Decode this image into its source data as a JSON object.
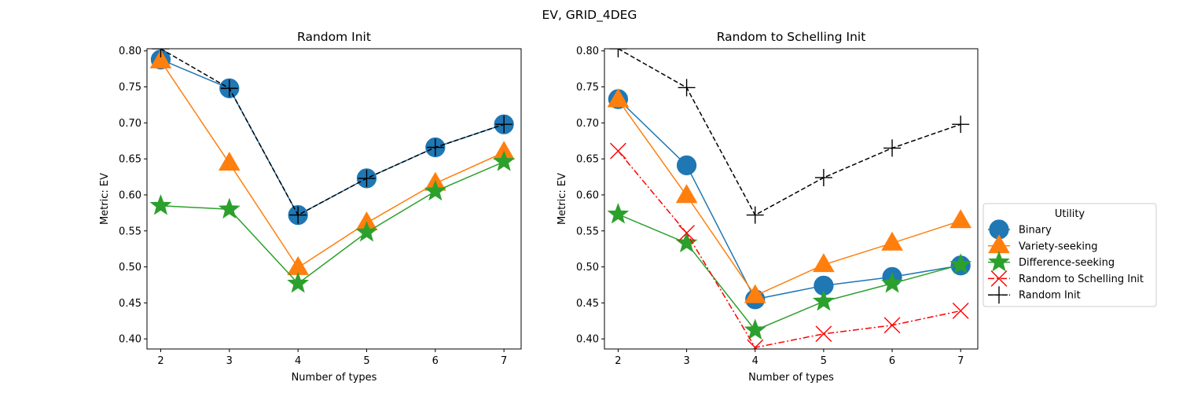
{
  "figure": {
    "suptitle": "EV, GRID_4DEG"
  },
  "chart_data": [
    {
      "type": "line",
      "title": "Random Init",
      "xlabel": "Number of types",
      "ylabel": "Metric: EV",
      "x": [
        2,
        3,
        4,
        5,
        6,
        7
      ],
      "xlim": [
        1.8,
        7.25
      ],
      "ylim": [
        0.386,
        0.803
      ],
      "xticks": [
        "2",
        "3",
        "4",
        "5",
        "6",
        "7"
      ],
      "yticks": [
        "0.40",
        "0.45",
        "0.50",
        "0.55",
        "0.60",
        "0.65",
        "0.70",
        "0.75",
        "0.80"
      ],
      "grid": false,
      "series": [
        {
          "name": "Binary",
          "values": [
            0.788,
            0.748,
            0.572,
            0.623,
            0.666,
            0.698
          ],
          "color": "#1f77b4",
          "marker": "circle",
          "dash": "solid"
        },
        {
          "name": "Variety-seeking",
          "values": [
            0.786,
            0.644,
            0.499,
            0.561,
            0.616,
            0.659
          ],
          "color": "#ff7f0e",
          "marker": "triangle",
          "dash": "solid"
        },
        {
          "name": "Difference-seeking",
          "values": [
            0.585,
            0.58,
            0.477,
            0.548,
            0.605,
            0.646
          ],
          "color": "#2ca02c",
          "marker": "star",
          "dash": "solid"
        },
        {
          "name": "Random Init",
          "values": [
            0.803,
            0.748,
            0.572,
            0.623,
            0.666,
            0.698
          ],
          "color": "#000000",
          "marker": "plus",
          "dash": "dashed"
        }
      ]
    },
    {
      "type": "line",
      "title": "Random to Schelling Init",
      "xlabel": "Number of types",
      "ylabel": "Metric: EV",
      "x": [
        2,
        3,
        4,
        5,
        6,
        7
      ],
      "xlim": [
        1.8,
        7.25
      ],
      "ylim": [
        0.386,
        0.803
      ],
      "xticks": [
        "2",
        "3",
        "4",
        "5",
        "6",
        "7"
      ],
      "yticks": [
        "0.40",
        "0.45",
        "0.50",
        "0.55",
        "0.60",
        "0.65",
        "0.70",
        "0.75",
        "0.80"
      ],
      "grid": false,
      "series": [
        {
          "name": "Binary",
          "values": [
            0.733,
            0.641,
            0.455,
            0.474,
            0.486,
            0.502
          ],
          "color": "#1f77b4",
          "marker": "circle",
          "dash": "solid"
        },
        {
          "name": "Variety-seeking",
          "values": [
            0.732,
            0.599,
            0.46,
            0.503,
            0.533,
            0.564
          ],
          "color": "#ff7f0e",
          "marker": "triangle",
          "dash": "solid"
        },
        {
          "name": "Difference-seeking",
          "values": [
            0.573,
            0.533,
            0.412,
            0.452,
            0.477,
            0.503
          ],
          "color": "#2ca02c",
          "marker": "star",
          "dash": "solid"
        },
        {
          "name": "Random to Schelling Init",
          "values": [
            0.661,
            0.547,
            0.388,
            0.407,
            0.419,
            0.439
          ],
          "color": "#ff0000",
          "marker": "x",
          "dash": "dashdot"
        },
        {
          "name": "Random Init",
          "values": [
            0.803,
            0.749,
            0.572,
            0.624,
            0.665,
            0.698
          ],
          "color": "#000000",
          "marker": "plus",
          "dash": "dashed"
        }
      ]
    }
  ],
  "legend": {
    "title": "Utility",
    "placement": "right",
    "entries": [
      {
        "label": "Binary",
        "color": "#1f77b4",
        "marker": "circle",
        "dash": "solid"
      },
      {
        "label": "Variety-seeking",
        "color": "#ff7f0e",
        "marker": "triangle",
        "dash": "solid"
      },
      {
        "label": "Difference-seeking",
        "color": "#2ca02c",
        "marker": "star",
        "dash": "solid"
      },
      {
        "label": "Random to Schelling Init",
        "color": "#ff0000",
        "marker": "x",
        "dash": "dashdot"
      },
      {
        "label": "Random Init",
        "color": "#000000",
        "marker": "plus",
        "dash": "dashed"
      }
    ]
  }
}
